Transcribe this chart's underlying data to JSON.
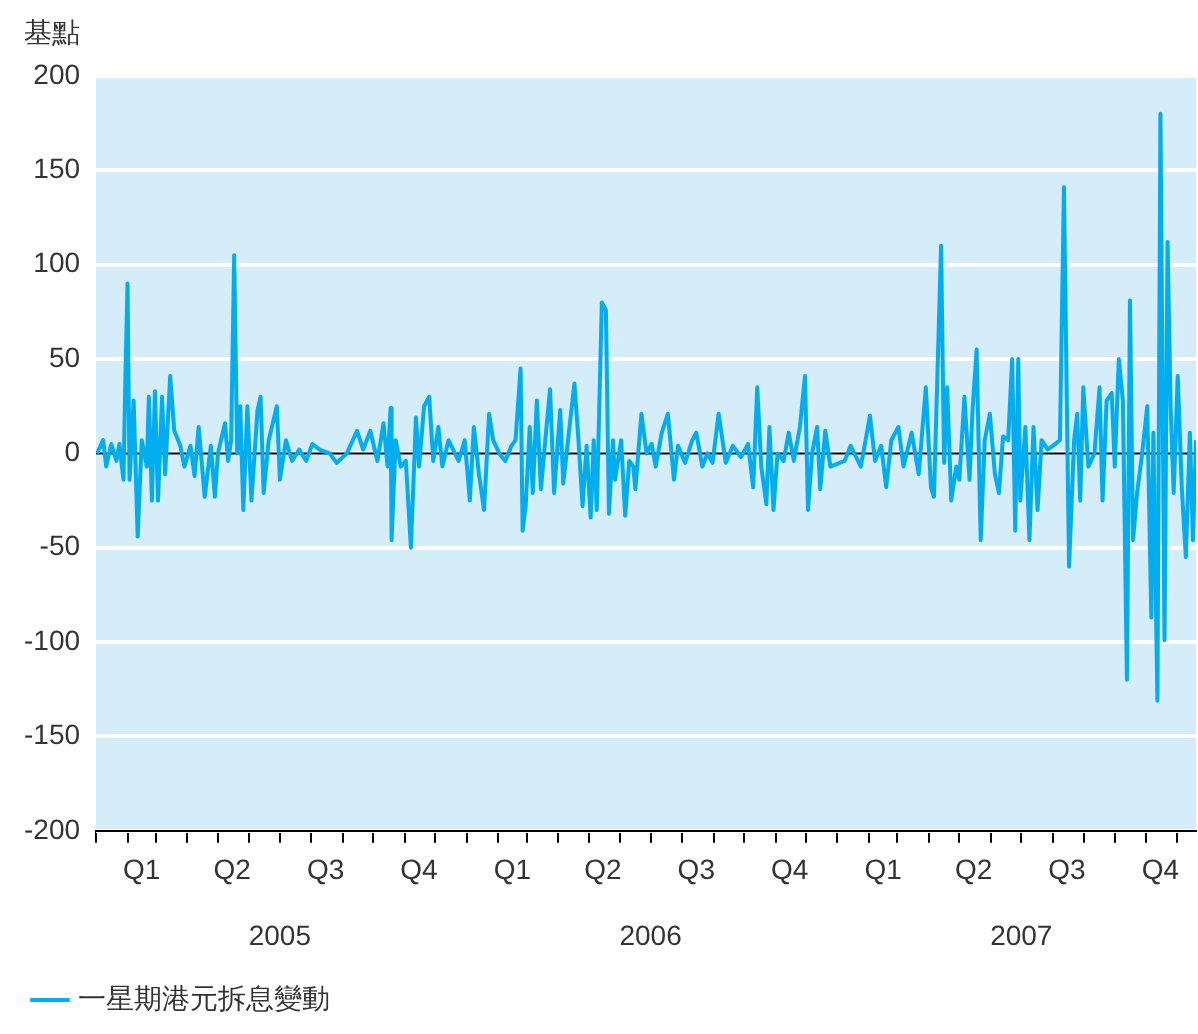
{
  "chart_data": {
    "type": "line",
    "ylabel": "基點",
    "legend": "bottom left",
    "grid": "y",
    "marker": "none",
    "line_style": "solid",
    "xlim": [
      "2005-01-01",
      "2007-12-20"
    ],
    "xticks": [
      {
        "value": "2005-01-01",
        "label": null
      },
      {
        "value": "2005-02-01",
        "label": null
      },
      {
        "value": "2005-02-15",
        "label": "Q1"
      },
      {
        "value": "2005-03-01",
        "label": null
      },
      {
        "value": "2005-04-01",
        "label": null
      },
      {
        "value": "2005-05-01",
        "label": null
      },
      {
        "value": "2005-05-15",
        "label": "Q2"
      },
      {
        "value": "2005-06-01",
        "label": null
      },
      {
        "value": "2005-07-01",
        "label": null
      },
      {
        "value": "2005-08-01",
        "label": null
      },
      {
        "value": "2005-08-15",
        "label": "Q3"
      },
      {
        "value": "2005-09-01",
        "label": null
      },
      {
        "value": "2005-10-01",
        "label": null
      },
      {
        "value": "2005-11-01",
        "label": null
      },
      {
        "value": "2005-11-15",
        "label": "Q4"
      },
      {
        "value": "2005-12-01",
        "label": null
      },
      {
        "value": "2006-01-01",
        "label": null
      },
      {
        "value": "2006-02-01",
        "label": null
      },
      {
        "value": "2006-02-15",
        "label": "Q1"
      },
      {
        "value": "2006-03-01",
        "label": null
      },
      {
        "value": "2006-04-01",
        "label": null
      },
      {
        "value": "2006-05-01",
        "label": null
      },
      {
        "value": "2006-05-15",
        "label": "Q2"
      },
      {
        "value": "2006-06-01",
        "label": null
      },
      {
        "value": "2006-07-01",
        "label": null
      },
      {
        "value": "2006-08-01",
        "label": null
      },
      {
        "value": "2006-08-15",
        "label": "Q3"
      },
      {
        "value": "2006-09-01",
        "label": null
      },
      {
        "value": "2006-10-01",
        "label": null
      },
      {
        "value": "2006-11-01",
        "label": null
      },
      {
        "value": "2006-11-15",
        "label": "Q4"
      },
      {
        "value": "2006-12-01",
        "label": null
      },
      {
        "value": "2007-01-01",
        "label": null
      },
      {
        "value": "2007-02-01",
        "label": null
      },
      {
        "value": "2007-02-15",
        "label": "Q1"
      },
      {
        "value": "2007-03-01",
        "label": null
      },
      {
        "value": "2007-04-01",
        "label": null
      },
      {
        "value": "2007-05-01",
        "label": null
      },
      {
        "value": "2007-05-15",
        "label": "Q2"
      },
      {
        "value": "2007-06-01",
        "label": null
      },
      {
        "value": "2007-07-01",
        "label": null
      },
      {
        "value": "2007-08-01",
        "label": null
      },
      {
        "value": "2007-08-15",
        "label": "Q3"
      },
      {
        "value": "2007-09-01",
        "label": null
      },
      {
        "value": "2007-10-01",
        "label": null
      },
      {
        "value": "2007-11-01",
        "label": null
      },
      {
        "value": "2007-11-15",
        "label": "Q4"
      },
      {
        "value": "2007-12-01",
        "label": null
      }
    ],
    "x2lim": [
      "2005-01-01",
      "2007-12-20"
    ],
    "x2ticks": [
      {
        "value": "2005-07-01",
        "label": "2005"
      },
      {
        "value": "2006-07-01",
        "label": "2006"
      },
      {
        "value": "2007-07-01",
        "label": "2007"
      }
    ],
    "ylim": [
      -200,
      200
    ],
    "yticks": [
      -200,
      -150,
      -100,
      -50,
      0,
      50,
      100,
      150,
      200
    ],
    "ref_lines": [
      {
        "axis": "y",
        "value": 0,
        "color": "#000000"
      }
    ],
    "series": [
      {
        "name": "一星期港元拆息變動",
        "color": "#00aeef",
        "x": [
          "2005-01-02",
          "2005-01-08",
          "2005-01-11",
          "2005-01-16",
          "2005-01-21",
          "2005-01-24",
          "2005-01-28",
          "2005-01-30",
          "2005-02-01",
          "2005-02-03",
          "2005-02-07",
          "2005-02-11",
          "2005-02-15",
          "2005-02-20",
          "2005-02-22",
          "2005-02-25",
          "2005-02-28",
          "2005-03-03",
          "2005-03-07",
          "2005-03-10",
          "2005-03-15",
          "2005-03-19",
          "2005-03-25",
          "2005-03-29",
          "2005-04-04",
          "2005-04-08",
          "2005-04-12",
          "2005-04-18",
          "2005-04-24",
          "2005-04-28",
          "2005-05-01",
          "2005-05-08",
          "2005-05-11",
          "2005-05-14",
          "2005-05-17",
          "2005-05-20",
          "2005-05-23",
          "2005-05-26",
          "2005-05-30",
          "2005-06-03",
          "2005-06-09",
          "2005-06-12",
          "2005-06-15",
          "2005-06-20",
          "2005-06-28",
          "2005-07-01",
          "2005-07-07",
          "2005-07-13",
          "2005-07-20",
          "2005-07-27",
          "2005-08-02",
          "2005-08-09",
          "2005-08-19",
          "2005-08-26",
          "2005-09-05",
          "2005-09-15",
          "2005-09-21",
          "2005-09-28",
          "2005-10-05",
          "2005-10-11",
          "2005-10-15",
          "2005-10-18",
          "2005-10-19",
          "2005-10-23",
          "2005-10-28",
          "2005-11-02",
          "2005-11-07",
          "2005-11-12",
          "2005-11-15",
          "2005-11-20",
          "2005-11-25",
          "2005-11-29",
          "2005-12-04",
          "2005-12-08",
          "2005-12-14",
          "2005-12-24",
          "2005-12-30",
          "2006-01-04",
          "2006-01-08",
          "2006-01-13",
          "2006-01-18",
          "2006-01-23",
          "2006-01-27",
          "2006-02-02",
          "2006-02-08",
          "2006-02-14",
          "2006-02-18",
          "2006-02-23",
          "2006-02-25",
          "2006-02-28",
          "2006-03-04",
          "2006-03-07",
          "2006-03-11",
          "2006-03-15",
          "2006-03-20",
          "2006-03-24",
          "2006-03-28",
          "2006-04-03",
          "2006-04-06",
          "2006-04-13",
          "2006-04-17",
          "2006-04-21",
          "2006-04-25",
          "2006-04-29",
          "2006-05-03",
          "2006-05-06",
          "2006-05-09",
          "2006-05-14",
          "2006-05-18",
          "2006-05-21",
          "2006-05-25",
          "2006-05-27",
          "2006-06-02",
          "2006-06-06",
          "2006-06-10",
          "2006-06-14",
          "2006-06-16",
          "2006-06-22",
          "2006-06-27",
          "2006-07-02",
          "2006-07-06",
          "2006-07-12",
          "2006-07-18",
          "2006-07-24",
          "2006-07-28",
          "2006-08-04",
          "2006-08-11",
          "2006-08-15",
          "2006-08-21",
          "2006-08-26",
          "2006-08-31",
          "2006-09-06",
          "2006-09-13",
          "2006-09-20",
          "2006-09-28",
          "2006-10-05",
          "2006-10-10",
          "2006-10-14",
          "2006-10-18",
          "2006-10-23",
          "2006-10-26",
          "2006-10-30",
          "2006-11-03",
          "2006-11-09",
          "2006-11-14",
          "2006-11-19",
          "2006-11-25",
          "2006-11-30",
          "2006-12-03",
          "2006-12-07",
          "2006-12-12",
          "2006-12-15",
          "2006-12-20",
          "2006-12-25",
          "2007-01-08",
          "2007-01-14",
          "2007-01-24",
          "2007-02-02",
          "2007-02-07",
          "2007-02-13",
          "2007-02-18",
          "2007-02-23",
          "2007-03-02",
          "2007-03-07",
          "2007-03-15",
          "2007-03-22",
          "2007-03-29",
          "2007-04-03",
          "2007-04-06",
          "2007-04-13",
          "2007-04-16",
          "2007-04-19",
          "2007-04-23",
          "2007-04-28",
          "2007-05-01",
          "2007-05-06",
          "2007-05-11",
          "2007-05-14",
          "2007-05-18",
          "2007-05-22",
          "2007-05-26",
          "2007-05-31",
          "2007-06-05",
          "2007-06-09",
          "2007-06-13",
          "2007-06-18",
          "2007-06-22",
          "2007-06-25",
          "2007-06-28",
          "2007-06-30",
          "2007-07-05",
          "2007-07-09",
          "2007-07-13",
          "2007-07-17",
          "2007-07-21",
          "2007-07-27",
          "2007-08-01",
          "2007-08-08",
          "2007-08-12",
          "2007-08-17",
          "2007-08-22",
          "2007-08-25",
          "2007-08-28",
          "2007-08-31",
          "2007-09-05",
          "2007-09-11",
          "2007-09-16",
          "2007-09-19",
          "2007-09-23",
          "2007-09-28",
          "2007-10-01",
          "2007-10-05",
          "2007-10-09",
          "2007-10-13",
          "2007-10-16",
          "2007-10-19",
          "2007-10-23",
          "2007-10-28",
          "2007-11-02",
          "2007-11-06",
          "2007-11-08",
          "2007-11-12",
          "2007-11-15",
          "2007-11-19",
          "2007-11-22",
          "2007-11-25",
          "2007-11-28",
          "2007-12-02",
          "2007-12-06",
          "2007-12-10",
          "2007-12-14",
          "2007-12-17",
          "2007-12-20"
        ],
        "values": [
          0,
          7,
          -7,
          5,
          -4,
          5,
          -14,
          43,
          90,
          -14,
          28,
          -44,
          7,
          -7,
          30,
          -25,
          33,
          -25,
          30,
          -11,
          41,
          12,
          4,
          -7,
          4,
          -12,
          14,
          -23,
          4,
          -23,
          0,
          16,
          -4,
          7,
          105,
          0,
          25,
          -30,
          25,
          -25,
          23,
          30,
          -21,
          7,
          25,
          -14,
          7,
          -4,
          2,
          -4,
          5,
          2,
          0,
          -5,
          0,
          12,
          2,
          12,
          -4,
          16,
          -7,
          24,
          -46,
          7,
          -7,
          -4,
          -50,
          19,
          -7,
          25,
          30,
          -4,
          14,
          -7,
          7,
          -4,
          7,
          -25,
          14,
          -11,
          -30,
          21,
          7,
          0,
          -4,
          4,
          7,
          45,
          -41,
          -28,
          14,
          -21,
          28,
          -19,
          11,
          34,
          -21,
          23,
          -16,
          18,
          37,
          7,
          -28,
          4,
          -34,
          7,
          -30,
          80,
          76,
          -32,
          7,
          -14,
          7,
          -33,
          -4,
          -7,
          -19,
          21,
          0,
          5,
          -7,
          11,
          21,
          -14,
          4,
          -5,
          7,
          11,
          -7,
          0,
          -5,
          21,
          -5,
          4,
          -2,
          5,
          -18,
          35,
          -7,
          -27,
          14,
          -30,
          0,
          -4,
          11,
          -4,
          14,
          41,
          -30,
          0,
          14,
          -19,
          12,
          -7,
          -4,
          4,
          -7,
          20,
          -4,
          4,
          -18,
          7,
          14,
          -7,
          11,
          -11,
          35,
          -18,
          -23,
          110,
          -5,
          35,
          -25,
          -7,
          -14,
          30,
          -14,
          23,
          55,
          -46,
          7,
          21,
          -11,
          -21,
          9,
          7,
          50,
          -41,
          50,
          -25,
          14,
          -46,
          14,
          -30,
          7,
          2,
          4,
          7,
          141,
          -60,
          7,
          21,
          -25,
          35,
          -7,
          0,
          35,
          -25,
          28,
          32,
          -7,
          50,
          28,
          -120,
          81,
          -46,
          -21,
          0,
          25,
          -87,
          11,
          -131,
          180,
          -99,
          112,
          25,
          -21,
          41,
          -18,
          -55,
          11,
          -46,
          7
        ]
      }
    ]
  }
}
